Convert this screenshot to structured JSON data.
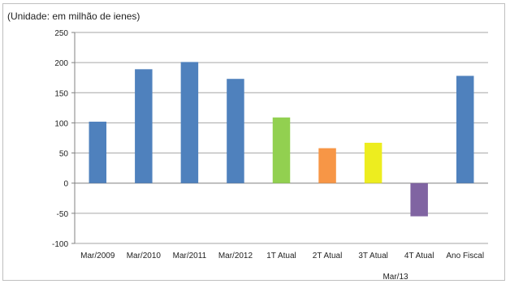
{
  "chart_data": {
    "type": "bar",
    "unit_label": "(Unidade: em milhão de ienes)",
    "categories": [
      "Mar/2009",
      "Mar/2010",
      "Mar/2011",
      "Mar/2012",
      "1T Atual",
      "2T Atual",
      "3T Atual",
      "4T Atual",
      "Ano Fiscal"
    ],
    "values": [
      102,
      189,
      201,
      173,
      109,
      58,
      67,
      -55,
      178
    ],
    "bar_colors": [
      "#4f81bd",
      "#4f81bd",
      "#4f81bd",
      "#4f81bd",
      "#92d050",
      "#f79646",
      "#eded1f",
      "#8064a2",
      "#4f81bd"
    ],
    "group_label": "Mar/13",
    "ylim": [
      -100,
      250
    ],
    "yticks": [
      -100,
      -50,
      0,
      50,
      100,
      150,
      200,
      250
    ],
    "grid": true,
    "legend": "none"
  }
}
